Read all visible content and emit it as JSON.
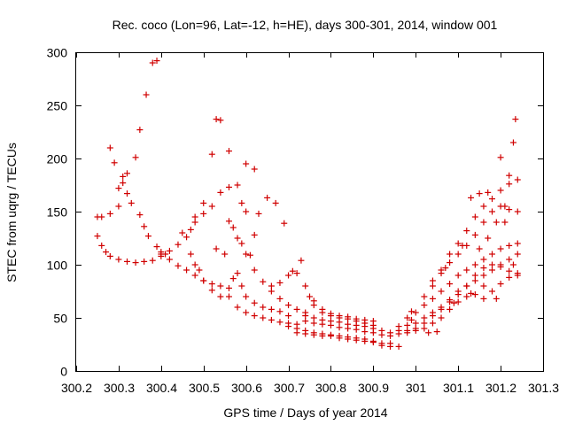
{
  "chart_data": {
    "type": "scatter",
    "title": "Rec. coco (Lon=96, Lat=-12, h=HE), days 300-301, 2014, window 001",
    "xlabel": "GPS time / Days of year 2014",
    "ylabel": "STEC from uqrg / TECUs",
    "xlim": [
      300.2,
      301.3
    ],
    "ylim": [
      0,
      300
    ],
    "xticks": [
      300.2,
      300.3,
      300.4,
      300.5,
      300.6,
      300.7,
      300.8,
      300.9,
      301.0,
      301.1,
      301.2,
      301.3
    ],
    "xtick_labels": [
      "300.2",
      "300.3",
      "300.4",
      "300.5",
      "300.6",
      "300.7",
      "300.8",
      "300.9",
      "301",
      "301.1",
      "301.2",
      "301.3"
    ],
    "yticks": [
      0,
      50,
      100,
      150,
      200,
      250,
      300
    ],
    "ytick_labels": [
      "0",
      "50",
      "100",
      "150",
      "200",
      "250",
      "300"
    ],
    "grid": false,
    "marker": "+",
    "color": "#d00000",
    "series": [
      {
        "name": "STEC",
        "points": [
          [
            300.25,
            127
          ],
          [
            300.26,
            118
          ],
          [
            300.27,
            112
          ],
          [
            300.28,
            108
          ],
          [
            300.3,
            105
          ],
          [
            300.32,
            103
          ],
          [
            300.34,
            102
          ],
          [
            300.36,
            103
          ],
          [
            300.38,
            104
          ],
          [
            300.4,
            108
          ],
          [
            300.42,
            105
          ],
          [
            300.44,
            99
          ],
          [
            300.46,
            95
          ],
          [
            300.48,
            90
          ],
          [
            300.5,
            85
          ],
          [
            300.52,
            76
          ],
          [
            300.54,
            70
          ],
          [
            300.56,
            70
          ],
          [
            300.58,
            60
          ],
          [
            300.6,
            55
          ],
          [
            300.62,
            52
          ],
          [
            300.64,
            50
          ],
          [
            300.66,
            48
          ],
          [
            300.68,
            46
          ],
          [
            300.7,
            45
          ],
          [
            300.72,
            44
          ],
          [
            300.25,
            145
          ],
          [
            300.26,
            145
          ],
          [
            300.28,
            148
          ],
          [
            300.3,
            155
          ],
          [
            300.32,
            167
          ],
          [
            300.33,
            158
          ],
          [
            300.35,
            147
          ],
          [
            300.36,
            136
          ],
          [
            300.37,
            127
          ],
          [
            300.39,
            117
          ],
          [
            300.4,
            112
          ],
          [
            300.41,
            110
          ],
          [
            300.28,
            210
          ],
          [
            300.29,
            196
          ],
          [
            300.3,
            172
          ],
          [
            300.31,
            177
          ],
          [
            300.31,
            183
          ],
          [
            300.32,
            186
          ],
          [
            300.34,
            201
          ],
          [
            300.35,
            227
          ],
          [
            300.365,
            260
          ],
          [
            300.38,
            290
          ],
          [
            300.39,
            292
          ],
          [
            300.4,
            110
          ],
          [
            300.42,
            113
          ],
          [
            300.44,
            119
          ],
          [
            300.46,
            126
          ],
          [
            300.48,
            140
          ],
          [
            300.5,
            158
          ],
          [
            300.52,
            204
          ],
          [
            300.53,
            237
          ],
          [
            300.54,
            236
          ],
          [
            300.56,
            207
          ],
          [
            300.58,
            175
          ],
          [
            300.59,
            158
          ],
          [
            300.6,
            150
          ],
          [
            300.45,
            130
          ],
          [
            300.47,
            133
          ],
          [
            300.48,
            145
          ],
          [
            300.5,
            148
          ],
          [
            300.52,
            155
          ],
          [
            300.54,
            168
          ],
          [
            300.56,
            173
          ],
          [
            300.47,
            110
          ],
          [
            300.48,
            100
          ],
          [
            300.49,
            95
          ],
          [
            300.5,
            85
          ],
          [
            300.52,
            82
          ],
          [
            300.54,
            80
          ],
          [
            300.56,
            78
          ],
          [
            300.57,
            87
          ],
          [
            300.58,
            92
          ],
          [
            300.59,
            80
          ],
          [
            300.6,
            70
          ],
          [
            300.62,
            64
          ],
          [
            300.64,
            60
          ],
          [
            300.66,
            58
          ],
          [
            300.68,
            56
          ],
          [
            300.7,
            52
          ],
          [
            300.53,
            115
          ],
          [
            300.55,
            110
          ],
          [
            300.56,
            141
          ],
          [
            300.57,
            135
          ],
          [
            300.58,
            125
          ],
          [
            300.59,
            120
          ],
          [
            300.6,
            110
          ],
          [
            300.62,
            95
          ],
          [
            300.64,
            84
          ],
          [
            300.66,
            75
          ],
          [
            300.68,
            68
          ],
          [
            300.7,
            62
          ],
          [
            300.72,
            58
          ],
          [
            300.74,
            55
          ],
          [
            300.6,
            195
          ],
          [
            300.62,
            190
          ],
          [
            300.63,
            148
          ],
          [
            300.65,
            163
          ],
          [
            300.67,
            158
          ],
          [
            300.69,
            139
          ],
          [
            300.62,
            128
          ],
          [
            300.61,
            109
          ],
          [
            300.66,
            80
          ],
          [
            300.68,
            83
          ],
          [
            300.7,
            90
          ],
          [
            300.71,
            94
          ],
          [
            300.72,
            92
          ],
          [
            300.73,
            104
          ],
          [
            300.74,
            80
          ],
          [
            300.75,
            70
          ],
          [
            300.76,
            62
          ],
          [
            300.78,
            55
          ],
          [
            300.8,
            52
          ],
          [
            300.82,
            50
          ],
          [
            300.84,
            49
          ],
          [
            300.86,
            47
          ],
          [
            300.88,
            45
          ],
          [
            300.9,
            43
          ],
          [
            300.7,
            42
          ],
          [
            300.72,
            40
          ],
          [
            300.74,
            38
          ],
          [
            300.76,
            36
          ],
          [
            300.78,
            35
          ],
          [
            300.8,
            34
          ],
          [
            300.82,
            33
          ],
          [
            300.84,
            32
          ],
          [
            300.86,
            31
          ],
          [
            300.88,
            30
          ],
          [
            300.9,
            28
          ],
          [
            300.92,
            26
          ],
          [
            300.94,
            26
          ],
          [
            300.72,
            36
          ],
          [
            300.74,
            35
          ],
          [
            300.76,
            34
          ],
          [
            300.78,
            33
          ],
          [
            300.8,
            33
          ],
          [
            300.82,
            31
          ],
          [
            300.84,
            30
          ],
          [
            300.86,
            29
          ],
          [
            300.88,
            28
          ],
          [
            300.9,
            27
          ],
          [
            300.92,
            24
          ],
          [
            300.94,
            23
          ],
          [
            300.96,
            23
          ],
          [
            300.74,
            47
          ],
          [
            300.76,
            45
          ],
          [
            300.78,
            44
          ],
          [
            300.8,
            43
          ],
          [
            300.82,
            41
          ],
          [
            300.84,
            40
          ],
          [
            300.86,
            39
          ],
          [
            300.88,
            37
          ],
          [
            300.9,
            36
          ],
          [
            300.92,
            34
          ],
          [
            300.94,
            33
          ],
          [
            300.96,
            35
          ],
          [
            300.98,
            38
          ],
          [
            300.74,
            52
          ],
          [
            300.76,
            50
          ],
          [
            300.78,
            48
          ],
          [
            300.8,
            47
          ],
          [
            300.82,
            46
          ],
          [
            300.84,
            44
          ],
          [
            300.86,
            43
          ],
          [
            300.88,
            42
          ],
          [
            300.9,
            40
          ],
          [
            300.92,
            38
          ],
          [
            300.94,
            36
          ],
          [
            300.96,
            38
          ],
          [
            300.76,
            66
          ],
          [
            300.78,
            58
          ],
          [
            300.8,
            54
          ],
          [
            300.82,
            52
          ],
          [
            300.84,
            51
          ],
          [
            300.86,
            49
          ],
          [
            300.88,
            48
          ],
          [
            300.9,
            47
          ],
          [
            300.96,
            42
          ],
          [
            300.98,
            43
          ],
          [
            301.0,
            45
          ],
          [
            301.02,
            50
          ],
          [
            301.04,
            55
          ],
          [
            301.06,
            60
          ],
          [
            301.08,
            67
          ],
          [
            301.1,
            75
          ],
          [
            301.12,
            80
          ],
          [
            301.14,
            85
          ],
          [
            301.16,
            90
          ],
          [
            301.18,
            95
          ],
          [
            301.2,
            100
          ],
          [
            301.22,
            105
          ],
          [
            301.24,
            110
          ],
          [
            300.98,
            36
          ],
          [
            301.0,
            38
          ],
          [
            301.02,
            40
          ],
          [
            301.04,
            45
          ],
          [
            301.06,
            50
          ],
          [
            301.08,
            58
          ],
          [
            301.1,
            65
          ],
          [
            301.12,
            70
          ],
          [
            301.14,
            72
          ],
          [
            301.16,
            68
          ],
          [
            301.18,
            75
          ],
          [
            301.2,
            82
          ],
          [
            301.22,
            88
          ],
          [
            301.24,
            92
          ],
          [
            300.98,
            50
          ],
          [
            301.0,
            55
          ],
          [
            301.02,
            62
          ],
          [
            301.04,
            68
          ],
          [
            301.06,
            75
          ],
          [
            301.08,
            82
          ],
          [
            301.1,
            90
          ],
          [
            301.12,
            95
          ],
          [
            301.14,
            100
          ],
          [
            301.16,
            105
          ],
          [
            301.18,
            110
          ],
          [
            301.2,
            115
          ],
          [
            301.22,
            118
          ],
          [
            301.24,
            120
          ],
          [
            301.0,
            40
          ],
          [
            301.02,
            45
          ],
          [
            301.04,
            52
          ],
          [
            301.06,
            58
          ],
          [
            301.08,
            65
          ],
          [
            301.1,
            72
          ],
          [
            301.12,
            80
          ],
          [
            301.14,
            90
          ],
          [
            301.16,
            97
          ],
          [
            301.18,
            100
          ],
          [
            301.2,
            98
          ],
          [
            301.22,
            94
          ],
          [
            301.24,
            90
          ],
          [
            301.02,
            70
          ],
          [
            301.04,
            80
          ],
          [
            301.06,
            92
          ],
          [
            301.08,
            102
          ],
          [
            301.1,
            110
          ],
          [
            301.12,
            118
          ],
          [
            301.14,
            128
          ],
          [
            301.16,
            140
          ],
          [
            301.18,
            150
          ],
          [
            301.2,
            155
          ],
          [
            301.22,
            152
          ],
          [
            301.24,
            150
          ],
          [
            301.04,
            85
          ],
          [
            301.06,
            95
          ],
          [
            301.08,
            110
          ],
          [
            301.1,
            120
          ],
          [
            301.12,
            132
          ],
          [
            301.14,
            145
          ],
          [
            301.16,
            155
          ],
          [
            301.18,
            162
          ],
          [
            301.2,
            170
          ],
          [
            301.22,
            176
          ],
          [
            301.24,
            180
          ],
          [
            301.13,
            163
          ],
          [
            301.15,
            167
          ],
          [
            301.17,
            168
          ],
          [
            301.2,
            201
          ],
          [
            301.22,
            184
          ],
          [
            301.23,
            215
          ],
          [
            301.235,
            237
          ],
          [
            301.21,
            155
          ],
          [
            301.19,
            140
          ],
          [
            301.17,
            125
          ],
          [
            301.15,
            115
          ],
          [
            300.99,
            56
          ],
          [
            300.99,
            48
          ],
          [
            301.03,
            36
          ],
          [
            301.05,
            37
          ],
          [
            301.07,
            97
          ],
          [
            301.09,
            64
          ],
          [
            301.11,
            118
          ],
          [
            301.13,
            73
          ],
          [
            301.16,
            80
          ],
          [
            301.19,
            68
          ],
          [
            301.23,
            100
          ],
          [
            301.21,
            140
          ]
        ]
      }
    ]
  }
}
